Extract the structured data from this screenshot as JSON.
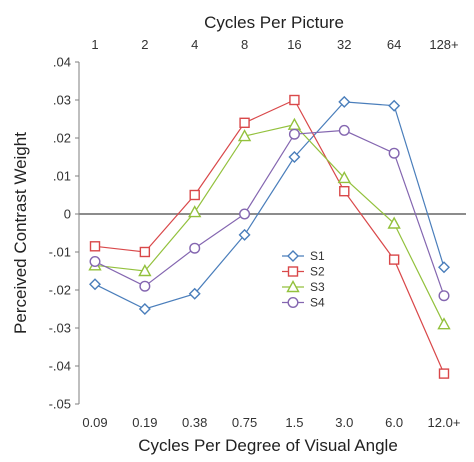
{
  "chart_data": {
    "type": "line",
    "title": "",
    "xlabel": "Cycles Per Degree of Visual Angle",
    "x2label": "Cycles Per Picture",
    "ylabel": "Perceived Contrast Weight",
    "categories": [
      "0.09",
      "0.19",
      "0.38",
      "0.75",
      "1.5",
      "3.0",
      "6.0",
      "12.0+"
    ],
    "top_categories": [
      "1",
      "2",
      "4",
      "8",
      "16",
      "32",
      "64",
      "128+"
    ],
    "y_ticks": [
      ".04",
      ".03",
      ".02",
      ".01",
      "0",
      "-.01",
      "-.02",
      "-.03",
      "-.04",
      "-.05"
    ],
    "ylim": [
      -0.05,
      0.04
    ],
    "grid": false,
    "zero_line": true,
    "legend_position": "center-right",
    "series": [
      {
        "name": "S1",
        "color": "#4a7ebb",
        "marker": "diamond",
        "values": [
          -0.0185,
          -0.025,
          -0.021,
          -0.0055,
          0.015,
          0.0295,
          0.0285,
          -0.014
        ]
      },
      {
        "name": "S2",
        "color": "#d9484a",
        "marker": "square",
        "values": [
          -0.0085,
          -0.01,
          0.005,
          0.024,
          0.03,
          0.006,
          -0.012,
          -0.042
        ]
      },
      {
        "name": "S3",
        "color": "#93c13d",
        "marker": "triangle",
        "values": [
          -0.0135,
          -0.015,
          0.0005,
          0.0205,
          0.0235,
          0.0095,
          -0.0025,
          -0.029
        ]
      },
      {
        "name": "S4",
        "color": "#8466b0",
        "marker": "circle",
        "values": [
          -0.0125,
          -0.019,
          -0.009,
          0.0,
          0.021,
          0.022,
          0.016,
          -0.0215
        ]
      }
    ]
  }
}
